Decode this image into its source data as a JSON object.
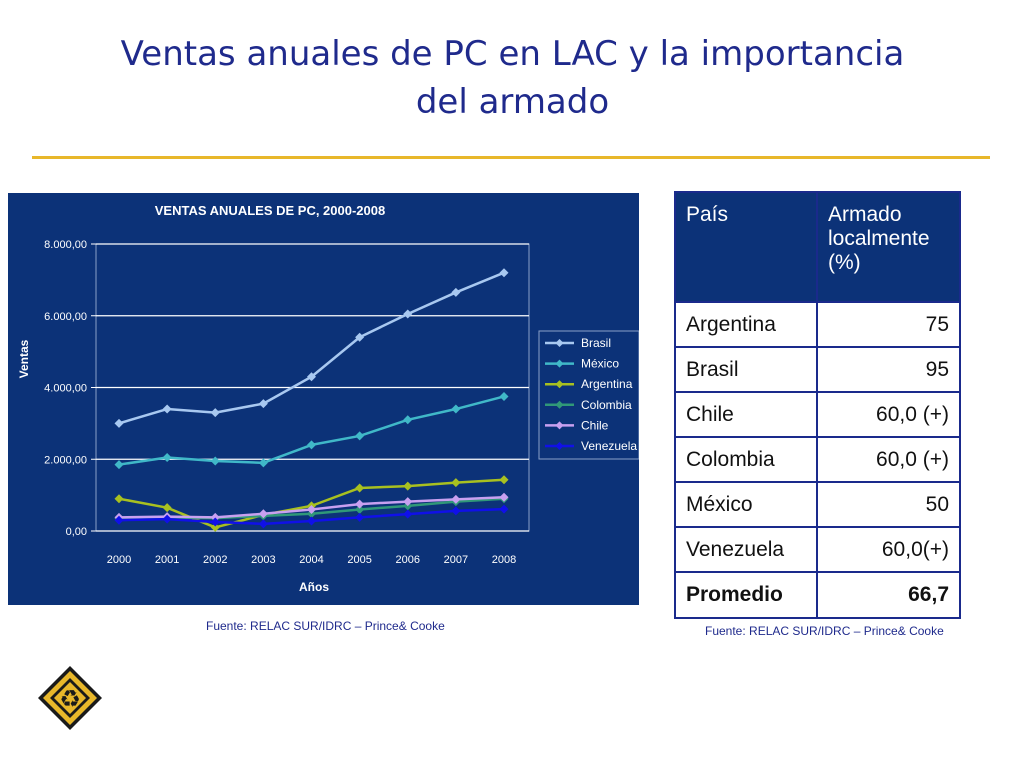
{
  "slide": {
    "title_line1": "Ventas anuales de PC en LAC y la importancia",
    "title_line2": "del armado",
    "title_color": "#1f2a8c",
    "accent_color": "#e8b72a"
  },
  "chart_source": "Fuente: RELAC SUR/IDRC – Prince& Cooke",
  "table_source": "Fuente: RELAC SUR/IDRC – Prince& Cooke",
  "table": {
    "headers": [
      "País",
      "Armado localmente (%)"
    ],
    "rows": [
      {
        "country": "Argentina",
        "value": "75"
      },
      {
        "country": "Brasil",
        "value": "95"
      },
      {
        "country": "Chile",
        "value": "60,0 (+)"
      },
      {
        "country": "Colombia",
        "value": "60,0 (+)"
      },
      {
        "country": "México",
        "value": "50"
      },
      {
        "country": "Venezuela",
        "value": "60,0(+)"
      }
    ],
    "summary": {
      "country": "Promedio",
      "value": "66,7"
    }
  },
  "logo": {
    "icon": "recycle-icon",
    "colors": [
      "#e8b72a",
      "#1a1a1a"
    ]
  },
  "chart_data": {
    "type": "line",
    "title": "VENTAS ANUALES DE PC, 2000-2008",
    "xlabel": "Años",
    "ylabel": "Ventas",
    "x": [
      "2000",
      "2001",
      "2002",
      "2003",
      "2004",
      "2005",
      "2006",
      "2007",
      "2008"
    ],
    "ylim": [
      0,
      8000
    ],
    "yticks": [
      0,
      2000,
      4000,
      6000,
      8000
    ],
    "ytick_labels": [
      "0,00",
      "2.000,00",
      "4.000,00",
      "6.000,00",
      "8.000,00"
    ],
    "grid": true,
    "legend_position": "right",
    "background": "#0c3278",
    "series": [
      {
        "name": "Brasil",
        "color": "#a8c8f0",
        "values": [
          3000,
          3400,
          3300,
          3550,
          4300,
          5400,
          6050,
          6650,
          7200
        ]
      },
      {
        "name": "México",
        "color": "#40b8c8",
        "values": [
          1850,
          2050,
          1950,
          1900,
          2400,
          2650,
          3100,
          3400,
          3750
        ]
      },
      {
        "name": "Argentina",
        "color": "#a8c020",
        "values": [
          900,
          650,
          100,
          450,
          700,
          1200,
          1250,
          1350,
          1430
        ]
      },
      {
        "name": "Colombia",
        "color": "#309878",
        "values": [
          350,
          370,
          360,
          420,
          480,
          600,
          700,
          820,
          900
        ]
      },
      {
        "name": "Chile",
        "color": "#c8a0f0",
        "values": [
          380,
          400,
          380,
          480,
          600,
          750,
          820,
          880,
          940
        ]
      },
      {
        "name": "Venezuela",
        "color": "#1010e8",
        "values": [
          300,
          330,
          250,
          200,
          280,
          380,
          470,
          560,
          610
        ]
      }
    ]
  }
}
